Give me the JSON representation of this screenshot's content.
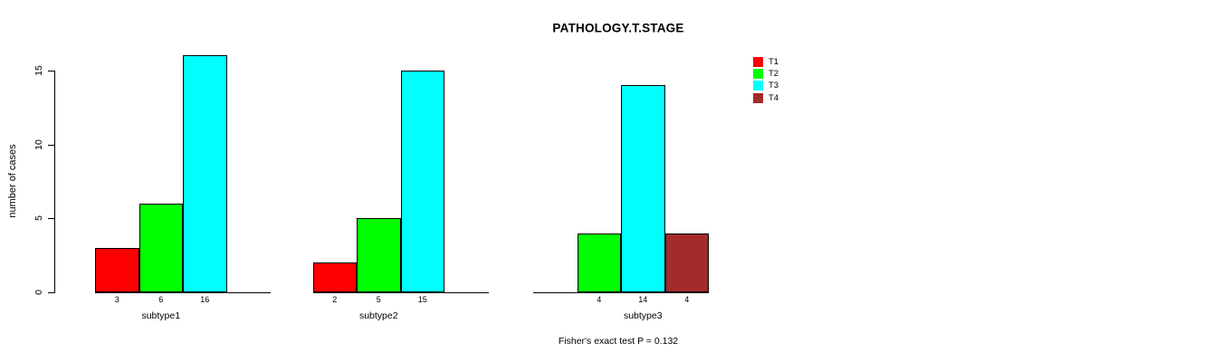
{
  "title": "PATHOLOGY.T.STAGE",
  "chart_data": {
    "type": "bar",
    "title": "PATHOLOGY.T.STAGE",
    "xlabel": "",
    "ylabel": "number of cases",
    "categories": [
      "subtype1",
      "subtype2",
      "subtype3"
    ],
    "series": [
      {
        "name": "T1",
        "color": "#FF0000",
        "values": [
          3,
          2,
          0
        ]
      },
      {
        "name": "T2",
        "color": "#00FF00",
        "values": [
          6,
          5,
          4
        ]
      },
      {
        "name": "T3",
        "color": "#00FFFF",
        "values": [
          16,
          15,
          14
        ]
      },
      {
        "name": "T4",
        "color": "#A52A2A",
        "values": [
          0,
          0,
          4
        ]
      }
    ],
    "bar_value_labels": true,
    "yticks": [
      0,
      5,
      10,
      15
    ],
    "ylim": [
      0,
      15
    ],
    "grid": false,
    "legend_position": "top-right",
    "annotation": "Fisher's exact test P = 0.132"
  }
}
